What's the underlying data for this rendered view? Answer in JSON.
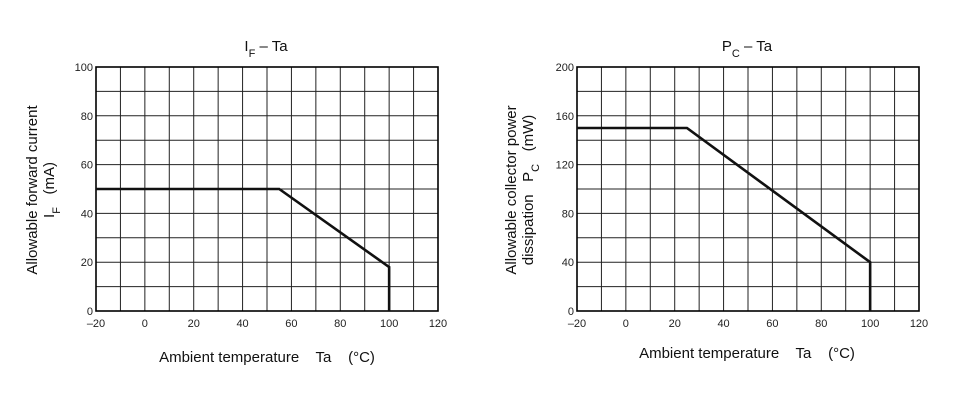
{
  "chart_data": [
    {
      "type": "line",
      "title_main": "I",
      "title_sub": "F",
      "title_rest": " – Ta",
      "xlabel": "Ambient temperature    Ta    (°C)",
      "ylabel_line1": "Allowable forward current",
      "ylabel_line2_main": "I",
      "ylabel_line2_sub": "F",
      "ylabel_line2_rest": "   (mA)",
      "xlim": [
        -20,
        120
      ],
      "ylim": [
        0,
        100
      ],
      "x_ticks": [
        -20,
        0,
        20,
        40,
        60,
        80,
        100,
        120
      ],
      "y_ticks": [
        0,
        20,
        40,
        60,
        80,
        100
      ],
      "x_tick_labels": [
        "–20",
        "0",
        "20",
        "40",
        "60",
        "80",
        "100",
        "120"
      ],
      "y_tick_labels": [
        "0",
        "20",
        "40",
        "60",
        "80",
        "100"
      ],
      "grid_x_step": 10,
      "grid_y_step": 10,
      "grid": true,
      "series": [
        {
          "x": [
            -20,
            55,
            100,
            100
          ],
          "y": [
            50,
            50,
            18,
            0
          ]
        }
      ]
    },
    {
      "type": "line",
      "title_main": "P",
      "title_sub": "C",
      "title_rest": " – Ta",
      "xlabel": "Ambient temperature    Ta    (°C)",
      "ylabel_line1": "Allowable collector power",
      "ylabel_line2_main": "dissipation   P",
      "ylabel_line2_sub": "C",
      "ylabel_line2_rest": "   (mW)",
      "xlim": [
        -20,
        120
      ],
      "ylim": [
        0,
        200
      ],
      "x_ticks": [
        -20,
        0,
        20,
        40,
        60,
        80,
        100,
        120
      ],
      "y_ticks": [
        0,
        40,
        80,
        120,
        160,
        200
      ],
      "x_tick_labels": [
        "–20",
        "0",
        "20",
        "40",
        "60",
        "80",
        "100",
        "120"
      ],
      "y_tick_labels": [
        "0",
        "40",
        "80",
        "120",
        "160",
        "200"
      ],
      "grid_x_step": 10,
      "grid_y_step": 20,
      "grid": true,
      "series": [
        {
          "x": [
            -20,
            25,
            100,
            100
          ],
          "y": [
            150,
            150,
            40,
            0
          ]
        }
      ]
    }
  ]
}
